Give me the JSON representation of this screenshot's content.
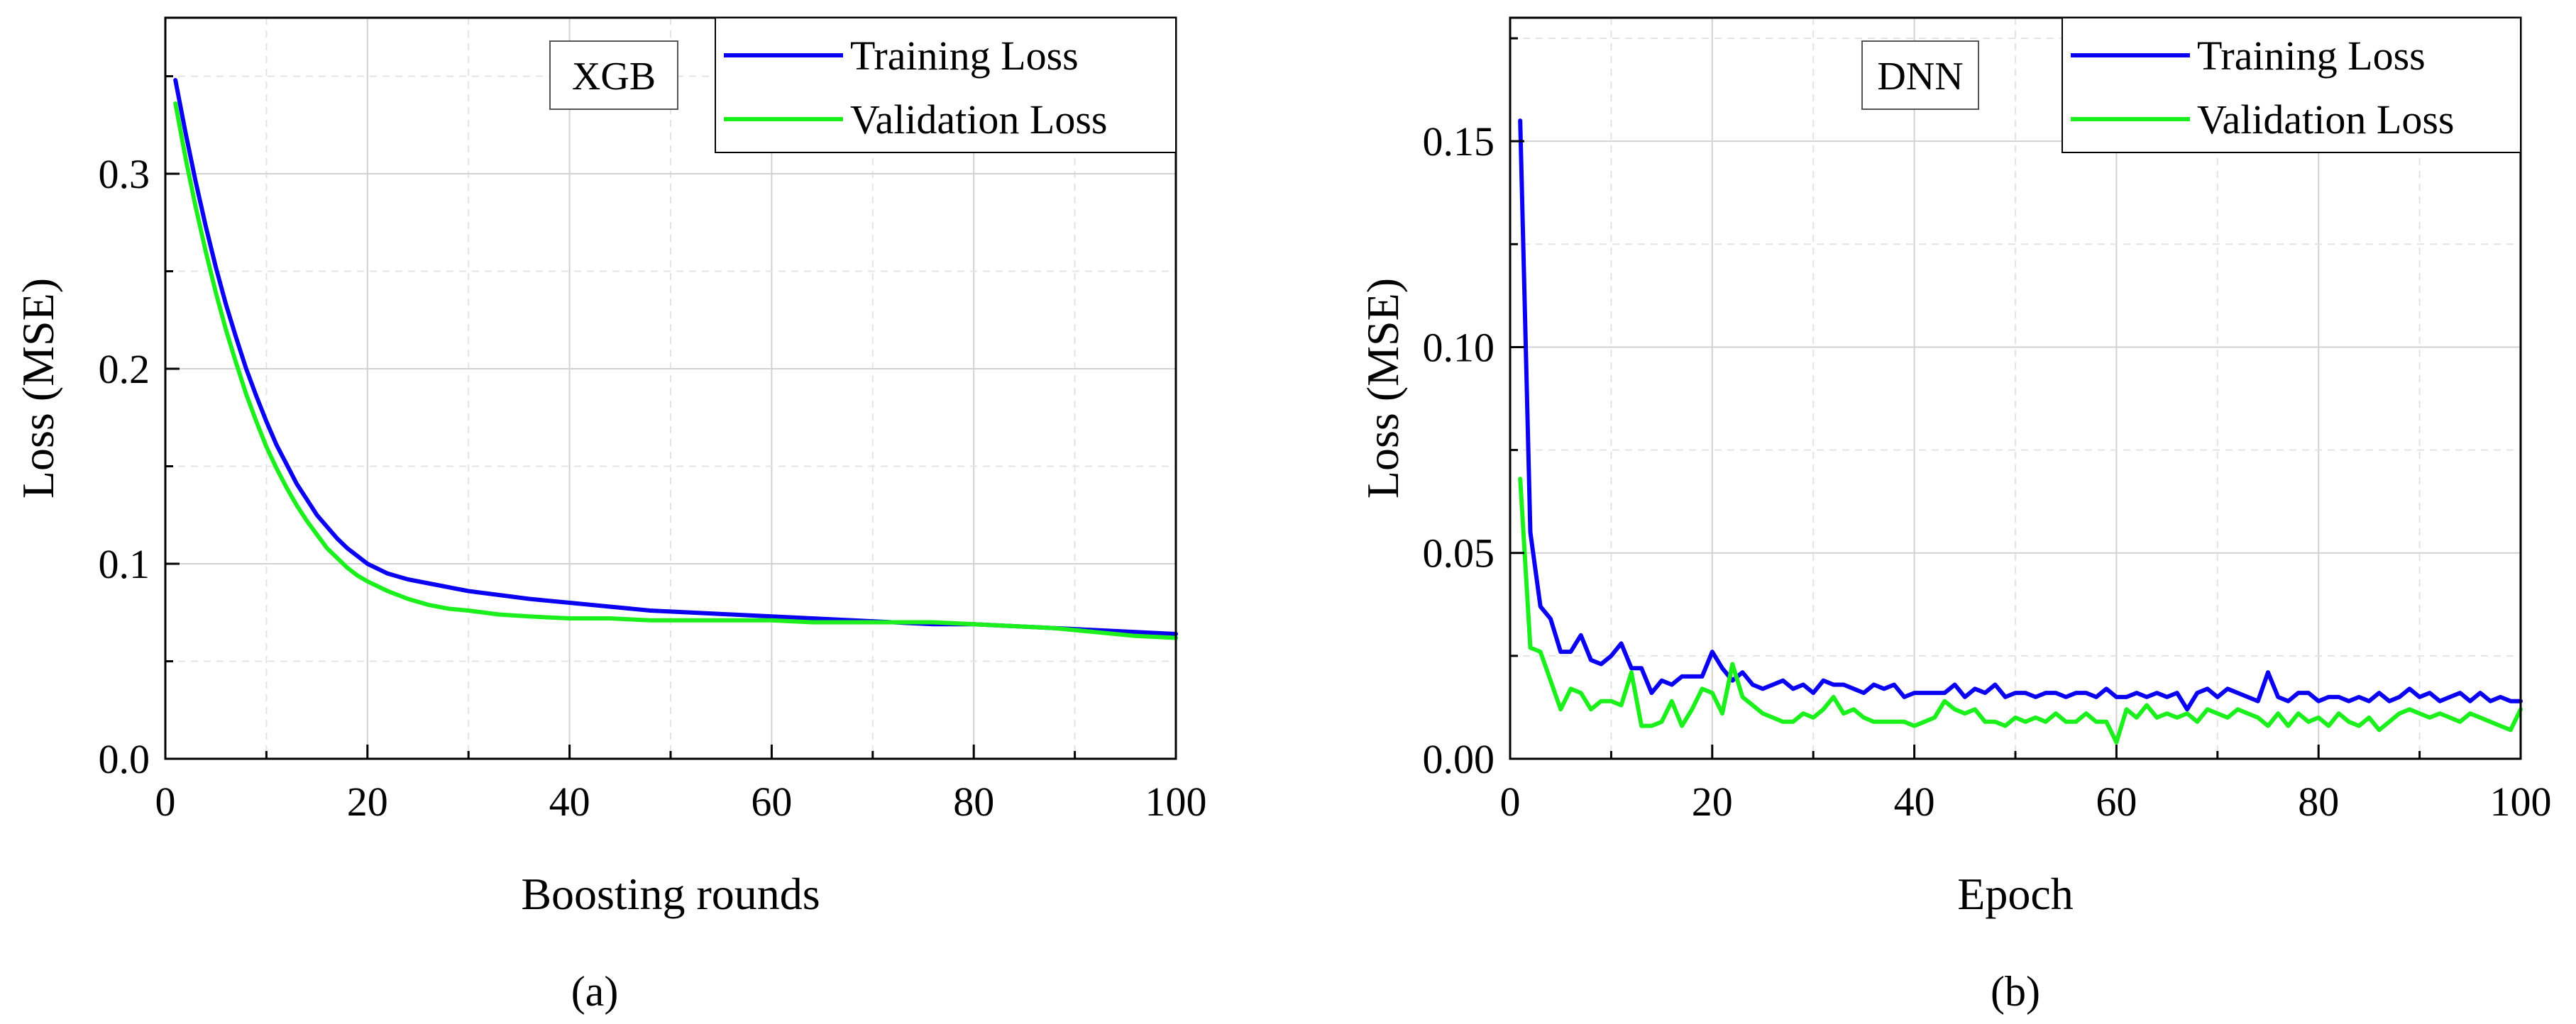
{
  "panels": [
    {
      "caption": "(a)",
      "chart_data": {
        "type": "line",
        "tag": "XGB",
        "xlabel": "Boosting rounds",
        "ylabel": "Loss (MSE)",
        "xlim": [
          0,
          100
        ],
        "ylim": [
          0,
          0.38
        ],
        "xticks": [
          0,
          20,
          40,
          60,
          80,
          100
        ],
        "xtick_labels": [
          "0",
          "20",
          "40",
          "60",
          "80",
          "100"
        ],
        "yticks": [
          0,
          0.1,
          0.2,
          0.3
        ],
        "ytick_labels": [
          "0.0",
          "0.1",
          "0.2",
          "0.3"
        ],
        "grid": true,
        "legend_position": "top-right",
        "series": [
          {
            "name": "Training Loss",
            "color": "#0a00f2",
            "x": [
              1,
              2,
              3,
              4,
              5,
              6,
              7,
              8,
              9,
              10,
              11,
              12,
              13,
              14,
              15,
              16,
              17,
              18,
              19,
              20,
              22,
              24,
              26,
              28,
              30,
              33,
              36,
              40,
              44,
              48,
              52,
              56,
              60,
              64,
              68,
              72,
              76,
              80,
              84,
              88,
              92,
              96,
              100
            ],
            "y": [
              0.348,
              0.321,
              0.296,
              0.273,
              0.252,
              0.233,
              0.216,
              0.2,
              0.186,
              0.173,
              0.161,
              0.151,
              0.141,
              0.133,
              0.125,
              0.119,
              0.113,
              0.108,
              0.104,
              0.1,
              0.095,
              0.092,
              0.09,
              0.088,
              0.086,
              0.084,
              0.082,
              0.08,
              0.078,
              0.076,
              0.075,
              0.074,
              0.073,
              0.072,
              0.071,
              0.07,
              0.069,
              0.069,
              0.068,
              0.067,
              0.066,
              0.065,
              0.064
            ]
          },
          {
            "name": "Validation Loss",
            "color": "#1cf01c",
            "x": [
              1,
              2,
              3,
              4,
              5,
              6,
              7,
              8,
              9,
              10,
              11,
              12,
              13,
              14,
              15,
              16,
              17,
              18,
              19,
              20,
              22,
              24,
              26,
              28,
              30,
              33,
              36,
              40,
              44,
              48,
              52,
              56,
              60,
              64,
              68,
              72,
              76,
              80,
              84,
              88,
              92,
              96,
              100
            ],
            "y": [
              0.336,
              0.308,
              0.283,
              0.26,
              0.239,
              0.22,
              0.203,
              0.187,
              0.173,
              0.16,
              0.149,
              0.139,
              0.13,
              0.122,
              0.115,
              0.108,
              0.103,
              0.098,
              0.094,
              0.091,
              0.086,
              0.082,
              0.079,
              0.077,
              0.076,
              0.074,
              0.073,
              0.072,
              0.072,
              0.071,
              0.071,
              0.071,
              0.071,
              0.07,
              0.07,
              0.07,
              0.07,
              0.069,
              0.068,
              0.067,
              0.065,
              0.063,
              0.062
            ]
          }
        ]
      }
    },
    {
      "caption": "(b)",
      "chart_data": {
        "type": "line",
        "tag": "DNN",
        "xlabel": "Epoch",
        "ylabel": "Loss (MSE)",
        "xlim": [
          0,
          100
        ],
        "ylim": [
          0,
          0.18
        ],
        "xticks": [
          0,
          20,
          40,
          60,
          80,
          100
        ],
        "xtick_labels": [
          "0",
          "20",
          "40",
          "60",
          "80",
          "100"
        ],
        "yticks": [
          0,
          0.05,
          0.1,
          0.15
        ],
        "ytick_labels": [
          "0.00",
          "0.05",
          "0.10",
          "0.15"
        ],
        "grid": true,
        "legend_position": "top-right",
        "series": [
          {
            "name": "Training Loss",
            "color": "#0a00f2",
            "x": [
              1,
              2,
              3,
              4,
              5,
              6,
              7,
              8,
              9,
              10,
              11,
              12,
              13,
              14,
              15,
              16,
              17,
              18,
              19,
              20,
              21,
              22,
              23,
              24,
              25,
              26,
              27,
              28,
              29,
              30,
              31,
              32,
              33,
              34,
              35,
              36,
              37,
              38,
              39,
              40,
              41,
              42,
              43,
              44,
              45,
              46,
              47,
              48,
              49,
              50,
              51,
              52,
              53,
              54,
              55,
              56,
              57,
              58,
              59,
              60,
              61,
              62,
              63,
              64,
              65,
              66,
              67,
              68,
              69,
              70,
              71,
              72,
              73,
              74,
              75,
              76,
              77,
              78,
              79,
              80,
              81,
              82,
              83,
              84,
              85,
              86,
              87,
              88,
              89,
              90,
              91,
              92,
              93,
              94,
              95,
              96,
              97,
              98,
              99,
              100
            ],
            "y": [
              0.155,
              0.055,
              0.037,
              0.034,
              0.026,
              0.026,
              0.03,
              0.024,
              0.023,
              0.025,
              0.028,
              0.022,
              0.022,
              0.016,
              0.019,
              0.018,
              0.02,
              0.02,
              0.02,
              0.026,
              0.022,
              0.019,
              0.021,
              0.018,
              0.017,
              0.018,
              0.019,
              0.017,
              0.018,
              0.016,
              0.019,
              0.018,
              0.018,
              0.017,
              0.016,
              0.018,
              0.017,
              0.018,
              0.015,
              0.016,
              0.016,
              0.016,
              0.016,
              0.018,
              0.015,
              0.017,
              0.016,
              0.018,
              0.015,
              0.016,
              0.016,
              0.015,
              0.016,
              0.016,
              0.015,
              0.016,
              0.016,
              0.015,
              0.017,
              0.015,
              0.015,
              0.016,
              0.015,
              0.016,
              0.015,
              0.016,
              0.012,
              0.016,
              0.017,
              0.015,
              0.017,
              0.016,
              0.015,
              0.014,
              0.021,
              0.015,
              0.014,
              0.016,
              0.016,
              0.014,
              0.015,
              0.015,
              0.014,
              0.015,
              0.014,
              0.016,
              0.014,
              0.015,
              0.017,
              0.015,
              0.016,
              0.014,
              0.015,
              0.016,
              0.014,
              0.016,
              0.014,
              0.015,
              0.014,
              0.014
            ]
          },
          {
            "name": "Validation Loss",
            "color": "#1cf01c",
            "x": [
              1,
              2,
              3,
              4,
              5,
              6,
              7,
              8,
              9,
              10,
              11,
              12,
              13,
              14,
              15,
              16,
              17,
              18,
              19,
              20,
              21,
              22,
              23,
              24,
              25,
              26,
              27,
              28,
              29,
              30,
              31,
              32,
              33,
              34,
              35,
              36,
              37,
              38,
              39,
              40,
              41,
              42,
              43,
              44,
              45,
              46,
              47,
              48,
              49,
              50,
              51,
              52,
              53,
              54,
              55,
              56,
              57,
              58,
              59,
              60,
              61,
              62,
              63,
              64,
              65,
              66,
              67,
              68,
              69,
              70,
              71,
              72,
              73,
              74,
              75,
              76,
              77,
              78,
              79,
              80,
              81,
              82,
              83,
              84,
              85,
              86,
              87,
              88,
              89,
              90,
              91,
              92,
              93,
              94,
              95,
              96,
              97,
              98,
              99,
              100
            ],
            "y": [
              0.068,
              0.027,
              0.026,
              0.019,
              0.012,
              0.017,
              0.016,
              0.012,
              0.014,
              0.014,
              0.013,
              0.021,
              0.008,
              0.008,
              0.009,
              0.014,
              0.008,
              0.012,
              0.017,
              0.016,
              0.011,
              0.023,
              0.015,
              0.013,
              0.011,
              0.01,
              0.009,
              0.009,
              0.011,
              0.01,
              0.012,
              0.015,
              0.011,
              0.012,
              0.01,
              0.009,
              0.009,
              0.009,
              0.009,
              0.008,
              0.009,
              0.01,
              0.014,
              0.012,
              0.011,
              0.012,
              0.009,
              0.009,
              0.008,
              0.01,
              0.009,
              0.01,
              0.009,
              0.011,
              0.009,
              0.009,
              0.011,
              0.009,
              0.009,
              0.004,
              0.012,
              0.01,
              0.013,
              0.01,
              0.011,
              0.01,
              0.011,
              0.009,
              0.012,
              0.011,
              0.01,
              0.012,
              0.011,
              0.01,
              0.008,
              0.011,
              0.008,
              0.011,
              0.009,
              0.01,
              0.008,
              0.011,
              0.009,
              0.008,
              0.01,
              0.007,
              0.009,
              0.011,
              0.012,
              0.011,
              0.01,
              0.011,
              0.01,
              0.009,
              0.011,
              0.01,
              0.009,
              0.008,
              0.007,
              0.012
            ]
          }
        ]
      }
    }
  ]
}
